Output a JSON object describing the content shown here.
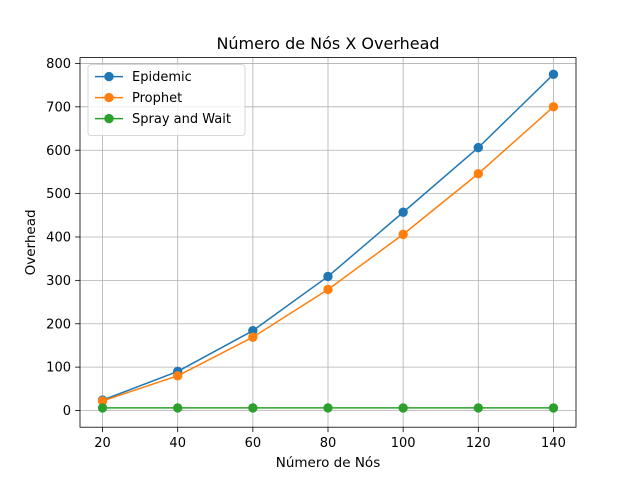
{
  "chart_data": {
    "type": "line",
    "title": "Número de Nós X Overhead",
    "xlabel": "Número de Nós",
    "ylabel": "Overhead",
    "x": [
      20,
      40,
      60,
      80,
      100,
      120,
      140
    ],
    "xticks": [
      20,
      40,
      60,
      80,
      100,
      120,
      140
    ],
    "yticks": [
      0,
      100,
      200,
      300,
      400,
      500,
      600,
      700,
      800
    ],
    "xlim": [
      14,
      146
    ],
    "ylim": [
      -38.5,
      813.5
    ],
    "grid": true,
    "legend_position": "top-left",
    "series": [
      {
        "name": "Epidemic",
        "color": "#1f77b4",
        "marker": "circle",
        "values": [
          24,
          90,
          184,
          309,
          457,
          606,
          775
        ]
      },
      {
        "name": "Prophet",
        "color": "#ff7f0e",
        "marker": "circle",
        "values": [
          22,
          80,
          169,
          279,
          406,
          546,
          700
        ]
      },
      {
        "name": "Spray and Wait",
        "color": "#2ca02c",
        "marker": "circle",
        "values": [
          6,
          6,
          6,
          6,
          6,
          6,
          6
        ]
      }
    ]
  }
}
